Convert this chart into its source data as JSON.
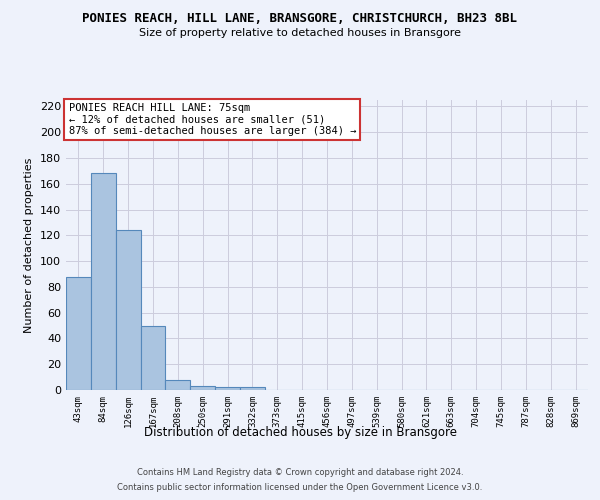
{
  "title": "PONIES REACH, HILL LANE, BRANSGORE, CHRISTCHURCH, BH23 8BL",
  "subtitle": "Size of property relative to detached houses in Bransgore",
  "xlabel": "Distribution of detached houses by size in Bransgore",
  "ylabel": "Number of detached properties",
  "footnote1": "Contains HM Land Registry data © Crown copyright and database right 2024.",
  "footnote2": "Contains public sector information licensed under the Open Government Licence v3.0.",
  "bin_labels": [
    "43sqm",
    "84sqm",
    "126sqm",
    "167sqm",
    "208sqm",
    "250sqm",
    "291sqm",
    "332sqm",
    "373sqm",
    "415sqm",
    "456sqm",
    "497sqm",
    "539sqm",
    "580sqm",
    "621sqm",
    "663sqm",
    "704sqm",
    "745sqm",
    "787sqm",
    "828sqm",
    "869sqm"
  ],
  "bar_heights": [
    88,
    168,
    124,
    50,
    8,
    3,
    2,
    2,
    0,
    0,
    0,
    0,
    0,
    0,
    0,
    0,
    0,
    0,
    0,
    0,
    0
  ],
  "bar_color": "#aac4e0",
  "bar_edge_color": "#5588bb",
  "ylim": [
    0,
    225
  ],
  "yticks": [
    0,
    20,
    40,
    60,
    80,
    100,
    120,
    140,
    160,
    180,
    200,
    220
  ],
  "annotation_text": "PONIES REACH HILL LANE: 75sqm\n← 12% of detached houses are smaller (51)\n87% of semi-detached houses are larger (384) →",
  "annotation_box_color": "#ffffff",
  "annotation_box_edge": "#cc3333",
  "background_color": "#eef2fb",
  "grid_color": "#ccccdd"
}
